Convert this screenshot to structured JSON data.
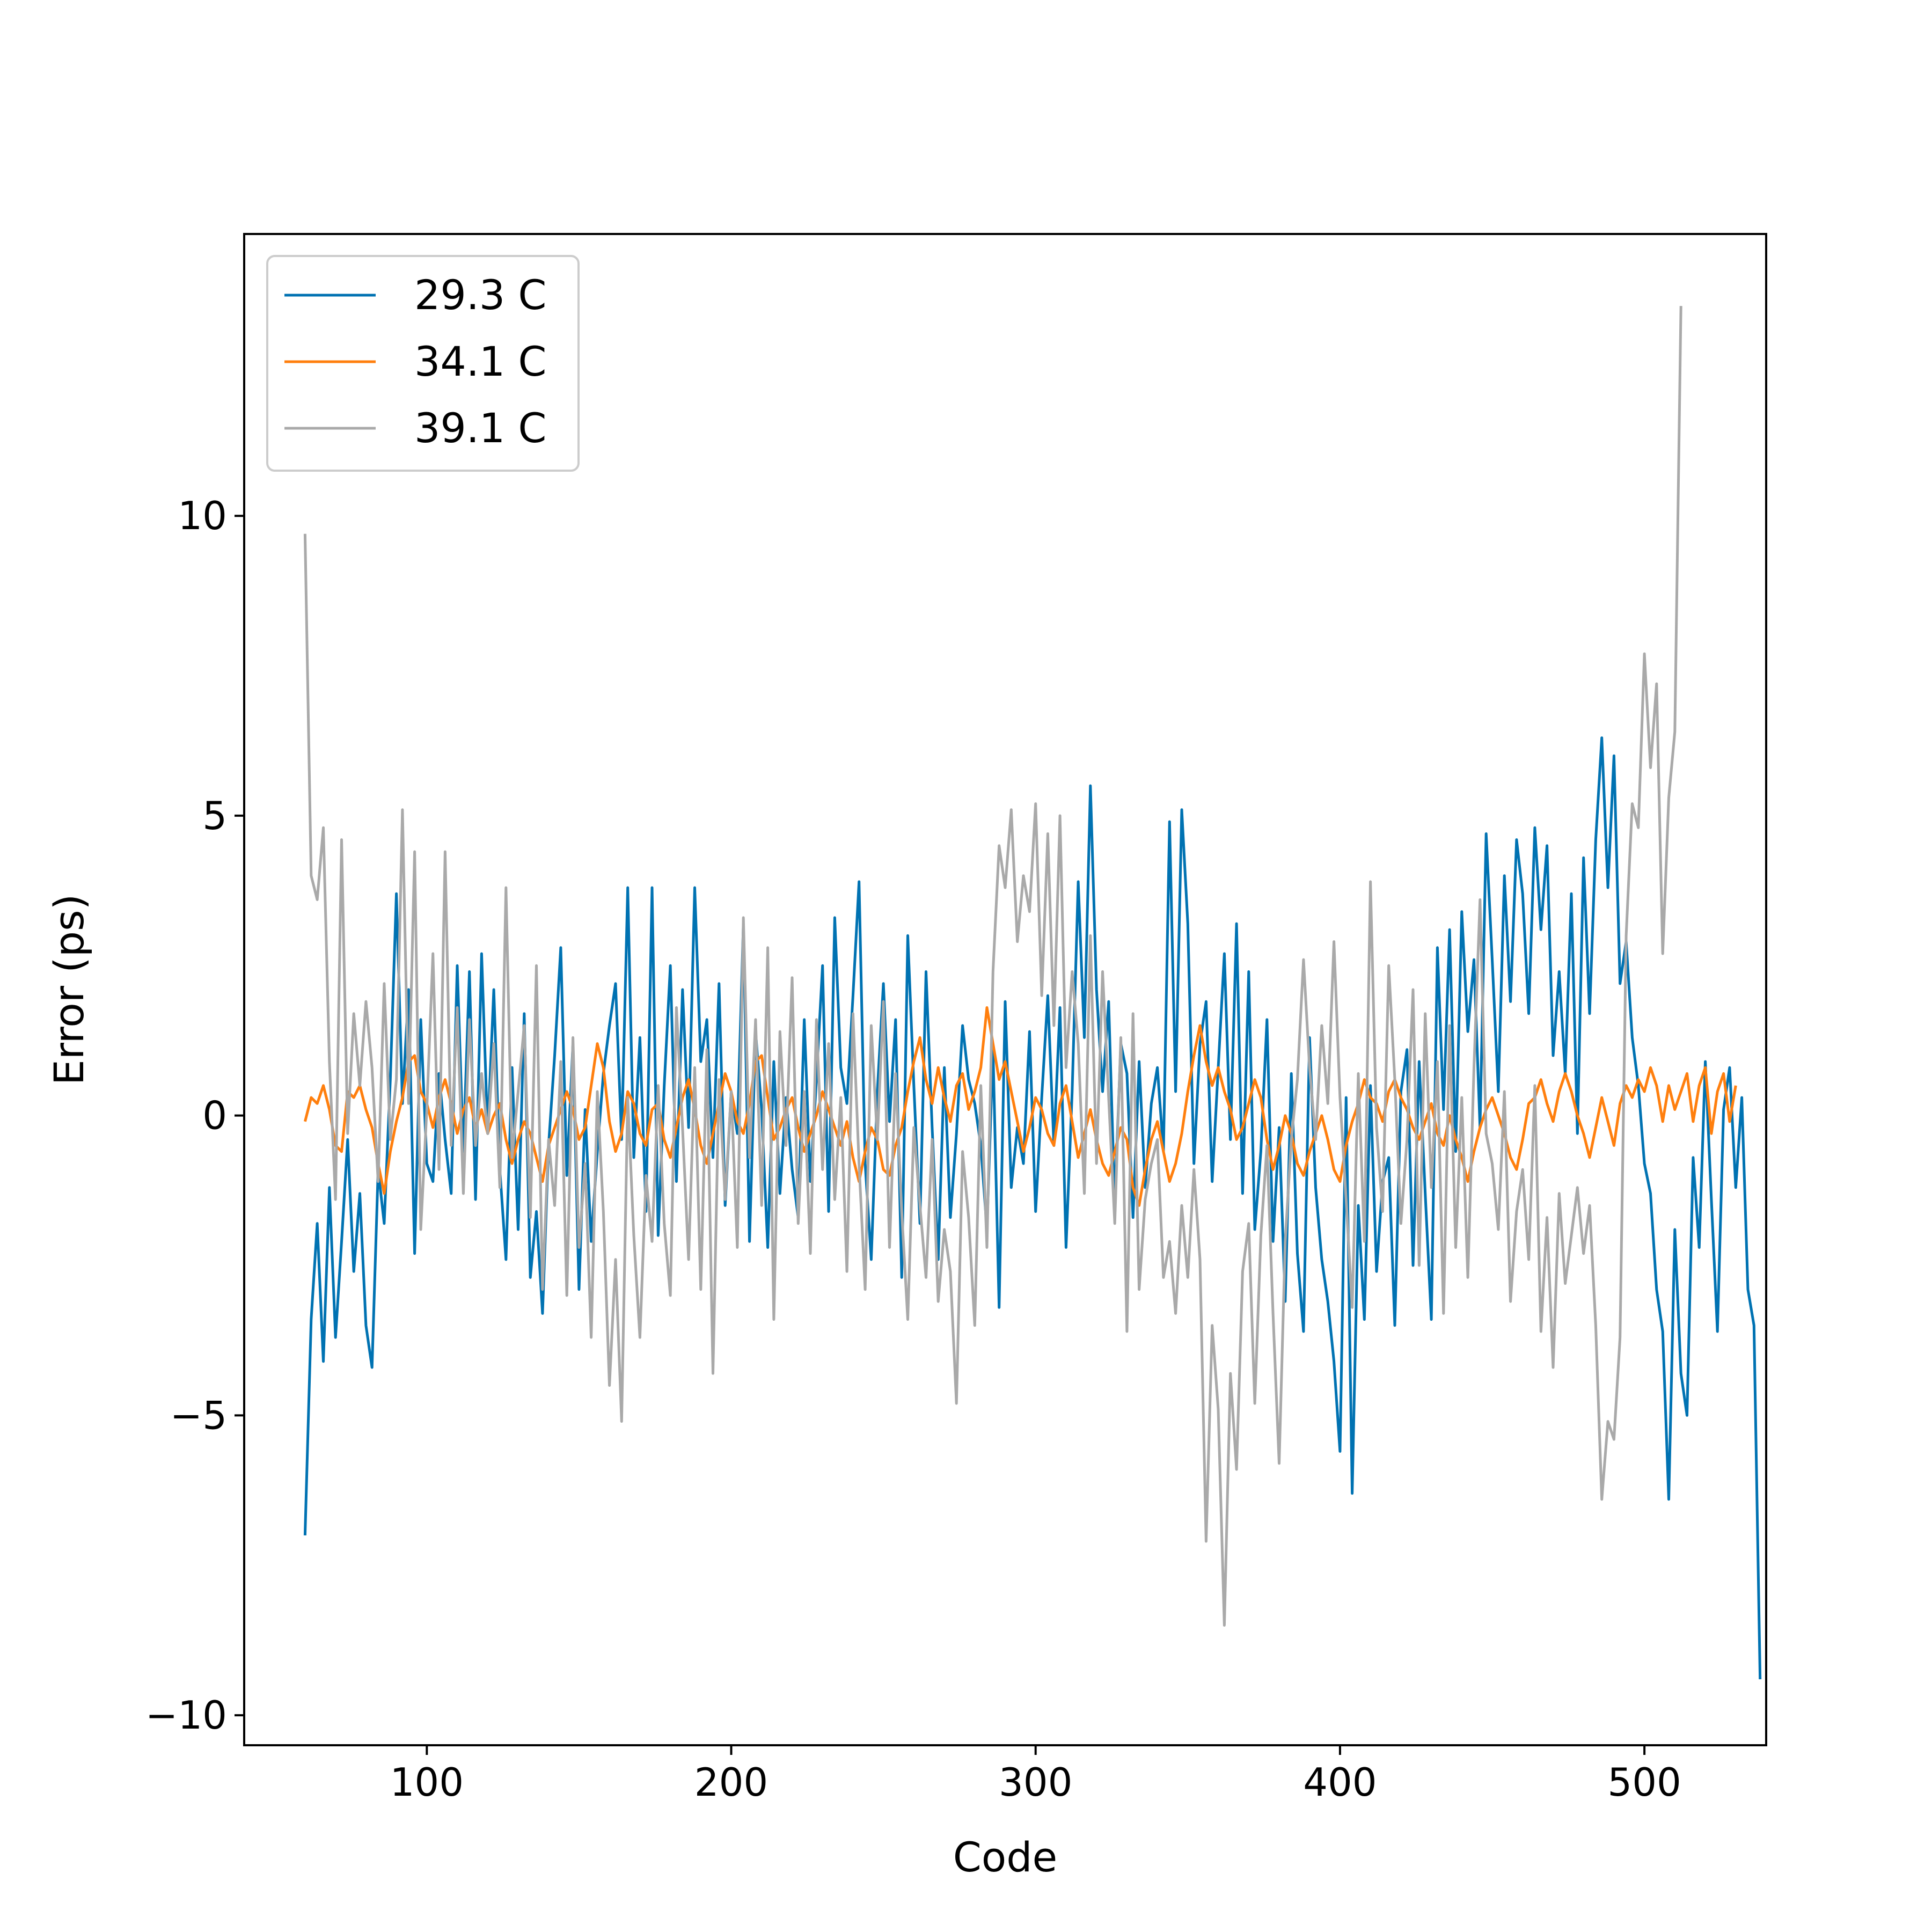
{
  "chart_data": {
    "type": "line",
    "xlabel": "Code",
    "ylabel": "Error (ps)",
    "xlim": [
      40,
      540
    ],
    "ylim": [
      -10.5,
      14.7
    ],
    "x_ticks": [
      100,
      200,
      300,
      400,
      500
    ],
    "x_tick_labels": [
      "100",
      "200",
      "300",
      "400",
      "500"
    ],
    "y_ticks": [
      -10,
      -5,
      0,
      5,
      10
    ],
    "y_tick_labels": [
      "−10",
      "−5",
      "0",
      "5",
      "10"
    ],
    "grid": false,
    "legend_position": "top-left",
    "series": [
      {
        "name": "29.3 C",
        "color": "#0072B2",
        "x_start": 60,
        "x_step": 2,
        "values": [
          -7.0,
          -3.4,
          -1.8,
          -4.1,
          -1.2,
          -3.7,
          -2.1,
          -0.4,
          -2.6,
          -1.3,
          -3.5,
          -4.2,
          -0.9,
          -1.8,
          0.6,
          3.7,
          0.2,
          2.1,
          -2.3,
          1.6,
          -0.8,
          -1.1,
          0.7,
          -0.4,
          -1.3,
          2.5,
          -0.6,
          2.4,
          -1.4,
          2.7,
          -0.3,
          2.1,
          -0.9,
          -2.4,
          0.8,
          -1.9,
          1.7,
          -2.7,
          -1.6,
          -3.3,
          -0.5,
          1.0,
          2.8,
          -1.0,
          1.2,
          -2.9,
          0.1,
          -2.1,
          -0.6,
          0.7,
          1.5,
          2.2,
          -0.4,
          3.8,
          -0.7,
          1.3,
          -1.6,
          3.8,
          -2.0,
          0.5,
          2.5,
          -1.1,
          2.1,
          -0.2,
          3.8,
          0.9,
          1.6,
          -0.7,
          2.2,
          -1.5,
          0.4,
          -0.3,
          3.2,
          -2.1,
          1.4,
          0.1,
          -2.2,
          0.9,
          -1.3,
          0.3,
          -0.9,
          -1.7,
          1.6,
          -1.1,
          0.6,
          2.5,
          -1.6,
          3.3,
          0.8,
          0.2,
          2.0,
          3.9,
          -0.8,
          -2.4,
          0.4,
          2.2,
          -0.1,
          1.6,
          -2.7,
          3.0,
          0.5,
          -1.8,
          2.4,
          -0.2,
          -2.4,
          0.8,
          -1.7,
          -0.3,
          1.5,
          0.6,
          0.2,
          -0.5,
          -1.9,
          1.1,
          -3.2,
          1.9,
          -1.2,
          -0.2,
          -0.8,
          1.4,
          -1.6,
          0.3,
          2.0,
          -0.5,
          1.8,
          -2.2,
          0.4,
          3.9,
          1.3,
          5.5,
          2.1,
          0.4,
          1.9,
          -1.5,
          1.2,
          0.7,
          -1.7,
          0.9,
          -1.2,
          0.2,
          0.8,
          -0.6,
          4.9,
          0.4,
          5.1,
          3.2,
          -0.8,
          1.2,
          1.9,
          -1.1,
          0.8,
          2.7,
          -0.4,
          3.2,
          -1.3,
          2.4,
          -1.9,
          -0.6,
          1.6,
          -2.1,
          -0.2,
          -3.1,
          0.7,
          -2.3,
          -3.6,
          1.3,
          -1.2,
          -2.4,
          -3.1,
          -4.1,
          -5.6,
          0.3,
          -6.3,
          -1.5,
          -3.4,
          0.5,
          -2.6,
          -1.1,
          -0.7,
          -3.5,
          0.4,
          1.1,
          -2.5,
          0.9,
          -1.3,
          -3.4,
          2.8,
          0.1,
          3.1,
          -0.6,
          3.4,
          1.4,
          2.6,
          -0.2,
          4.7,
          2.6,
          0.4,
          4.0,
          1.9,
          4.6,
          3.7,
          1.7,
          4.8,
          3.1,
          4.5,
          1.0,
          2.4,
          0.7,
          3.7,
          -0.3,
          4.3,
          1.7,
          4.6,
          6.3,
          3.8,
          6.0,
          2.2,
          2.9,
          1.3,
          0.5,
          -0.8,
          -1.3,
          -2.9,
          -3.6,
          -6.4,
          -1.9,
          -4.3,
          -5.0,
          -0.7,
          -2.2,
          0.9,
          -1.4,
          -3.6,
          0.1,
          0.8,
          -1.2,
          0.3,
          -2.9,
          -3.5,
          -9.4
        ]
      },
      {
        "name": "34.1 C",
        "color": "#FF7F0E",
        "x_start": 60,
        "x_step": 2,
        "values": [
          -0.1,
          0.3,
          0.2,
          0.5,
          0.1,
          -0.5,
          -0.6,
          0.4,
          0.3,
          0.5,
          0.1,
          -0.2,
          -0.8,
          -1.3,
          -0.6,
          -0.1,
          0.3,
          0.9,
          1.0,
          0.4,
          0.2,
          -0.2,
          0.3,
          0.6,
          0.2,
          -0.3,
          0.1,
          0.3,
          -0.2,
          0.1,
          -0.3,
          0.0,
          0.2,
          -0.4,
          -0.8,
          -0.4,
          -0.1,
          -0.3,
          -0.7,
          -1.1,
          -0.5,
          -0.2,
          0.1,
          0.4,
          0.1,
          -0.4,
          -0.2,
          0.5,
          1.2,
          0.8,
          -0.1,
          -0.6,
          -0.3,
          0.4,
          0.2,
          -0.3,
          -0.5,
          0.1,
          0.2,
          -0.4,
          -0.7,
          -0.2,
          0.3,
          0.6,
          0.1,
          -0.5,
          -0.8,
          -0.3,
          0.2,
          0.7,
          0.4,
          -0.1,
          -0.3,
          0.2,
          0.9,
          1.0,
          0.3,
          -0.4,
          -0.2,
          0.1,
          0.3,
          -0.2,
          -0.6,
          -0.3,
          0.0,
          0.4,
          0.1,
          -0.2,
          -0.5,
          -0.1,
          -0.7,
          -1.1,
          -0.6,
          -0.2,
          -0.4,
          -0.9,
          -1.0,
          -0.5,
          -0.2,
          0.4,
          0.9,
          1.3,
          0.6,
          0.2,
          0.8,
          0.3,
          -0.1,
          0.5,
          0.7,
          0.1,
          0.4,
          0.8,
          1.8,
          1.2,
          0.6,
          0.9,
          0.4,
          -0.1,
          -0.6,
          -0.2,
          0.3,
          0.1,
          -0.3,
          -0.5,
          0.2,
          0.5,
          -0.1,
          -0.7,
          -0.3,
          0.1,
          -0.4,
          -0.8,
          -1.0,
          -0.6,
          -0.2,
          -0.4,
          -1.2,
          -1.5,
          -0.9,
          -0.4,
          -0.1,
          -0.6,
          -1.1,
          -0.8,
          -0.3,
          0.4,
          1.0,
          1.5,
          0.9,
          0.5,
          0.8,
          0.4,
          0.1,
          -0.4,
          -0.2,
          0.2,
          0.6,
          0.3,
          -0.4,
          -0.9,
          -0.5,
          0.0,
          -0.3,
          -0.8,
          -1.0,
          -0.6,
          -0.3,
          0.0,
          -0.4,
          -0.9,
          -1.1,
          -0.5,
          -0.1,
          0.2,
          0.6,
          0.3,
          0.2,
          -0.1,
          0.4,
          0.6,
          0.3,
          0.1,
          -0.2,
          -0.4,
          -0.1,
          0.2,
          -0.3,
          -0.5,
          0.0,
          -0.4,
          -0.7,
          -1.1,
          -0.6,
          -0.2,
          0.1,
          0.3,
          0.0,
          -0.3,
          -0.7,
          -0.9,
          -0.4,
          0.2,
          0.3,
          0.6,
          0.2,
          -0.1,
          0.4,
          0.7,
          0.4,
          0.0,
          -0.3,
          -0.7,
          -0.2,
          0.3,
          -0.1,
          -0.5,
          0.2,
          0.5,
          0.3,
          0.6,
          0.4,
          0.8,
          0.5,
          -0.1,
          0.5,
          0.1,
          0.4,
          0.7,
          -0.1,
          0.5,
          0.8,
          -0.3,
          0.4,
          0.7,
          -0.1,
          0.5
        ]
      },
      {
        "name": "39.1 C",
        "color": "#A9A9A9",
        "x_start": 60,
        "x_step": 2,
        "values": [
          9.7,
          4.0,
          3.6,
          4.8,
          0.9,
          -1.4,
          4.6,
          -0.3,
          1.7,
          0.5,
          1.9,
          0.8,
          -1.1,
          2.2,
          -0.4,
          0.6,
          5.1,
          0.2,
          4.4,
          -1.9,
          0.1,
          2.7,
          -0.9,
          4.4,
          -0.5,
          1.8,
          -1.3,
          1.6,
          -0.5,
          0.7,
          -0.3,
          1.2,
          -1.2,
          3.8,
          -0.7,
          0.4,
          1.5,
          -1.7,
          2.5,
          -2.9,
          -0.4,
          -1.5,
          0.9,
          -3.0,
          1.3,
          -2.2,
          -0.8,
          -3.7,
          0.4,
          -1.6,
          -4.5,
          -2.4,
          -5.1,
          0.3,
          -2.0,
          -3.7,
          -1.0,
          -2.1,
          0.5,
          -1.8,
          -3.0,
          1.8,
          -0.2,
          -2.4,
          0.8,
          -2.9,
          1.1,
          -4.3,
          0.6,
          -1.4,
          0.4,
          -2.2,
          3.3,
          -0.7,
          1.6,
          -1.5,
          2.8,
          -3.4,
          1.4,
          -0.5,
          2.3,
          -1.8,
          0.4,
          -2.3,
          1.6,
          -0.9,
          1.2,
          -1.4,
          0.3,
          -2.6,
          1.7,
          -0.8,
          -2.9,
          1.5,
          -0.4,
          1.9,
          -2.2,
          0.7,
          -1.6,
          -3.4,
          -0.2,
          -1.5,
          -2.7,
          -0.4,
          -3.1,
          -1.9,
          -2.6,
          -4.8,
          -0.6,
          -1.7,
          -3.5,
          0.5,
          -2.2,
          2.4,
          4.5,
          3.8,
          5.1,
          2.9,
          4.0,
          3.4,
          5.2,
          2.0,
          4.7,
          1.5,
          5.0,
          0.8,
          2.4,
          1.2,
          -1.3,
          3.0,
          -0.8,
          2.4,
          0.3,
          -1.8,
          1.3,
          -3.6,
          1.7,
          -2.9,
          -1.4,
          -0.8,
          -0.4,
          -2.7,
          -2.1,
          -3.3,
          -1.5,
          -2.7,
          -0.9,
          -2.4,
          -7.1,
          -3.5,
          -4.9,
          -8.5,
          -4.3,
          -5.9,
          -2.6,
          -1.8,
          -4.8,
          -2.0,
          -0.5,
          -3.3,
          -5.8,
          -2.1,
          -0.4,
          0.6,
          2.6,
          0.8,
          -0.4,
          1.5,
          0.2,
          2.9,
          0.3,
          -1.4,
          -3.2,
          0.7,
          -2.1,
          3.9,
          -0.2,
          -1.6,
          2.5,
          0.6,
          -1.8,
          -0.4,
          2.1,
          -2.5,
          1.7,
          -1.2,
          0.9,
          -3.3,
          1.5,
          -2.2,
          0.3,
          -2.7,
          0.8,
          3.6,
          -0.3,
          -0.8,
          -1.9,
          0.4,
          -3.1,
          -1.6,
          -0.9,
          -2.4,
          0.5,
          -3.6,
          -1.7,
          -4.2,
          -1.3,
          -2.8,
          -2.0,
          -1.2,
          -2.3,
          -1.5,
          -3.5,
          -6.4,
          -5.1,
          -5.4,
          -3.7,
          3.0,
          5.2,
          4.8,
          7.7,
          5.8,
          7.2,
          2.7,
          5.3,
          6.4,
          13.5
        ]
      }
    ]
  }
}
